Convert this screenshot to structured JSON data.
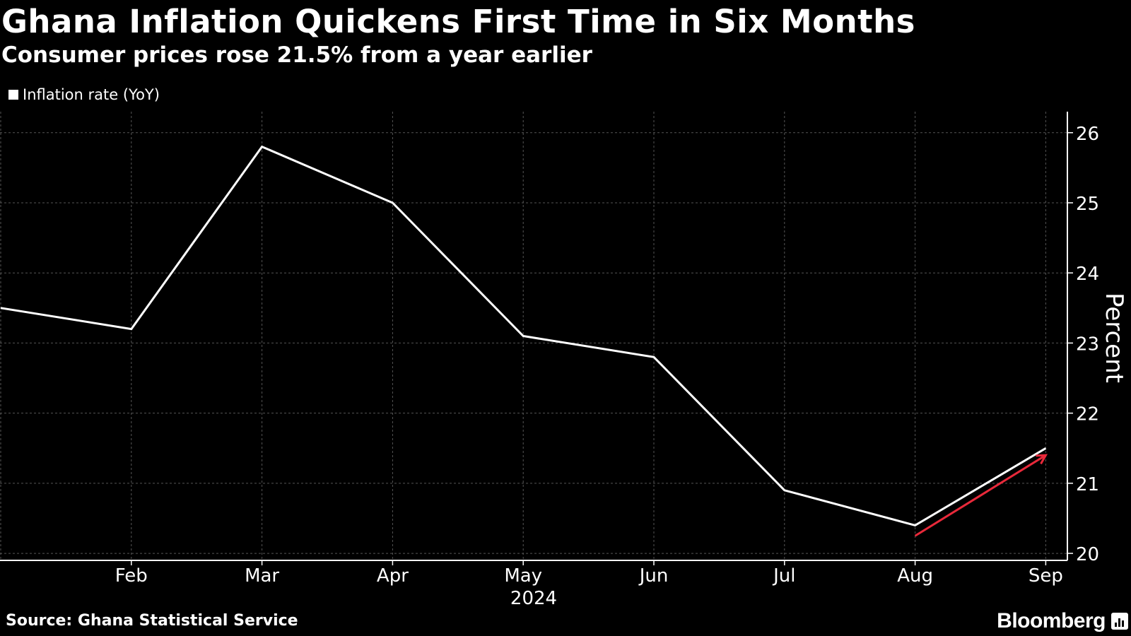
{
  "title": "Ghana Inflation Quickens First Time in Six Months",
  "subtitle": "Consumer prices rose 21.5% from a year earlier",
  "legend": {
    "label": "Inflation rate (YoY)"
  },
  "source": "Source: Ghana Statistical Service",
  "brand": "Bloomberg",
  "colors": {
    "background": "#000000",
    "line": "#ffffff",
    "grid": "#555555",
    "arrow": "#e8293a"
  },
  "chart_data": {
    "type": "line",
    "series": [
      {
        "name": "Inflation rate (YoY)",
        "x": [
          "2024-01",
          "2024-02",
          "2024-03",
          "2024-04",
          "2024-05",
          "2024-06",
          "2024-07",
          "2024-08",
          "2024-09"
        ],
        "values": [
          23.5,
          23.2,
          25.8,
          25.0,
          23.1,
          22.8,
          20.9,
          20.4,
          21.5
        ]
      }
    ],
    "x_ticks": [
      {
        "x": "2024-02",
        "label": "Feb"
      },
      {
        "x": "2024-03",
        "label": "Mar"
      },
      {
        "x": "2024-04",
        "label": "Apr"
      },
      {
        "x": "2024-05",
        "label": "May"
      },
      {
        "x": "2024-06",
        "label": "Jun"
      },
      {
        "x": "2024-07",
        "label": "Jul"
      },
      {
        "x": "2024-08",
        "label": "Aug"
      },
      {
        "x": "2024-09",
        "label": "Sep"
      }
    ],
    "x_year_label": "2024",
    "y_ticks": [
      20,
      21,
      22,
      23,
      24,
      25,
      26
    ],
    "ylim": [
      19.9,
      26.3
    ],
    "ylabel": "Percent",
    "y_axis_side": "right",
    "grid": true,
    "legend_position": "top-left",
    "annotations": [
      {
        "type": "arrow",
        "from": {
          "x": "2024-08",
          "y": 20.25
        },
        "to": {
          "x": "2024-09",
          "y": 21.4
        },
        "color": "#e8293a"
      }
    ]
  }
}
